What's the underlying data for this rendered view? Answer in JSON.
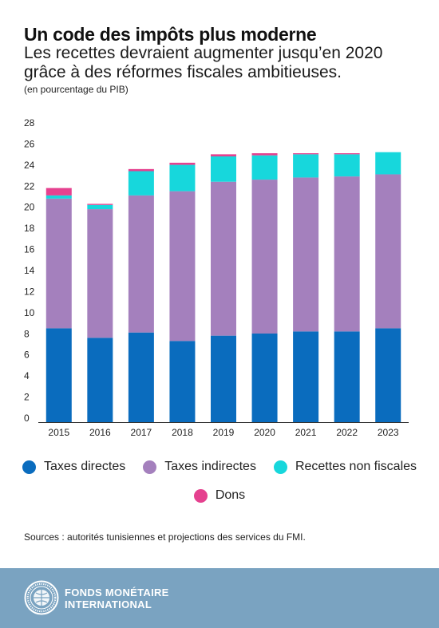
{
  "header": {
    "title": "Un code des impôts plus moderne",
    "subtitle": "Les recettes devraient augmenter jusqu’en 2020 grâce à des réformes fiscales ambitieuses.",
    "unit_note": "(en pourcentage du PIB)"
  },
  "chart_data": {
    "type": "bar",
    "stacked": true,
    "categories": [
      "2015",
      "2016",
      "2017",
      "2018",
      "2019",
      "2020",
      "2021",
      "2022",
      "2023"
    ],
    "series": [
      {
        "name": "Taxes directes",
        "color": "#0a6cbe",
        "values": [
          8.9,
          8.0,
          8.5,
          7.7,
          8.2,
          8.4,
          8.6,
          8.6,
          8.9
        ]
      },
      {
        "name": "Taxes indirectes",
        "color": "#a480bd",
        "values": [
          12.3,
          12.2,
          13.0,
          14.2,
          14.6,
          14.6,
          14.6,
          14.7,
          14.6
        ]
      },
      {
        "name": "Recettes non fiscales",
        "color": "#17d7dc",
        "values": [
          0.3,
          0.4,
          2.3,
          2.5,
          2.4,
          2.3,
          2.2,
          2.1,
          2.1
        ]
      },
      {
        "name": "Dons",
        "color": "#e5418f",
        "values": [
          0.7,
          0.1,
          0.2,
          0.2,
          0.2,
          0.2,
          0.1,
          0.1,
          0.0
        ]
      }
    ],
    "yticks": [
      "0",
      "2",
      "4",
      "6",
      "8",
      "10",
      "12",
      "14",
      "16",
      "18",
      "20",
      "22",
      "24",
      "26",
      "28"
    ],
    "ylim": [
      0,
      28
    ],
    "grid": false,
    "legend_position": "bottom"
  },
  "source": "Sources : autorités tunisiennes et projections des services du FMI.",
  "footer": {
    "org_line1": "FONDS MONÉTAIRE",
    "org_line2": "INTERNATIONAL",
    "logo_icon": "imf-seal-icon",
    "background": "#7aa3c1"
  }
}
